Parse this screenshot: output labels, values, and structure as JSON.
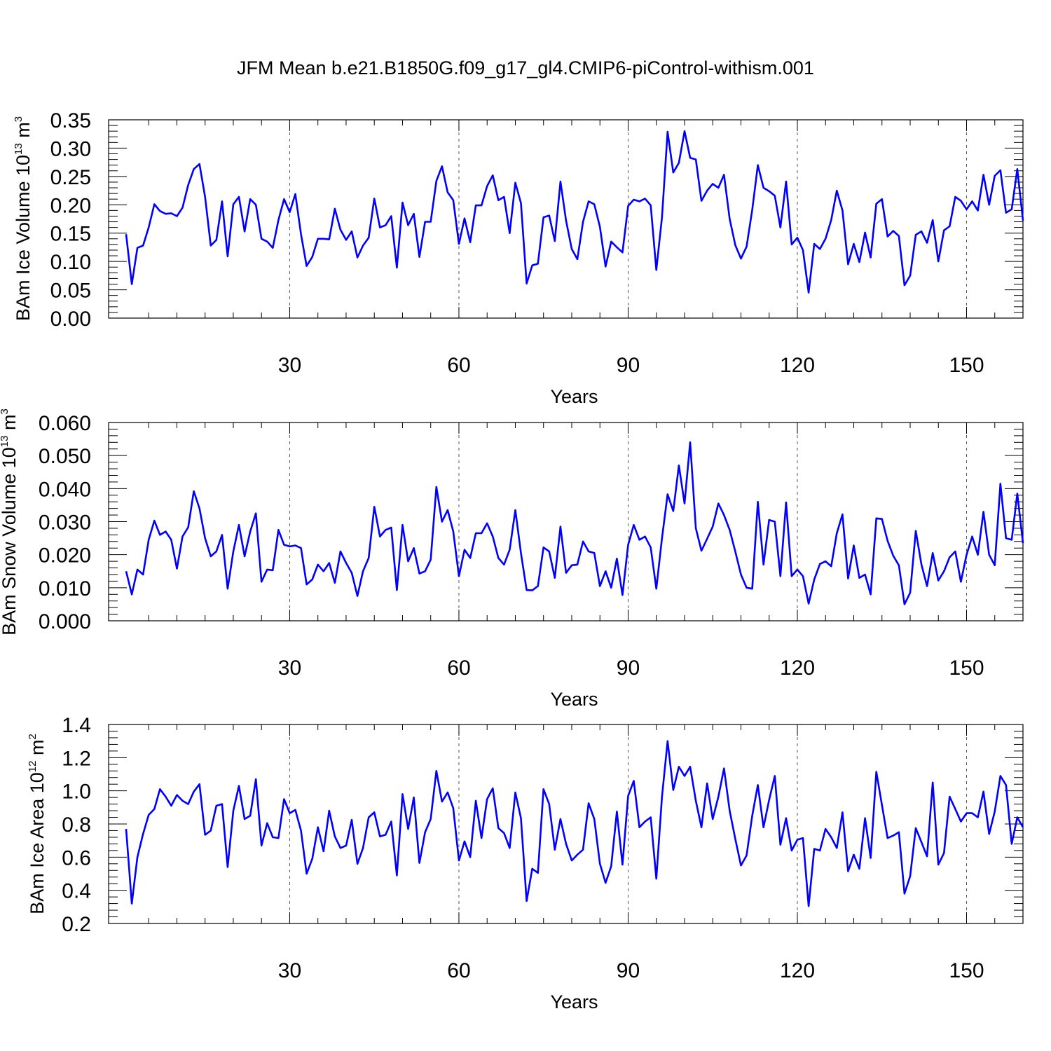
{
  "title": "JFM Mean b.e21.B1850G.f09_g17_gl4.CMIP6-piControl-withism.001",
  "colors": {
    "line": "#0000ff",
    "axis": "#000000",
    "grid": "#555555"
  },
  "chart_data": [
    {
      "type": "line",
      "xlabel": "Years",
      "ylabel": {
        "text": "BAm Ice Volume 10",
        "exp": "13",
        "unit": " m",
        "unit_exp": "3"
      },
      "xlim": [
        1,
        160
      ],
      "ylim": [
        0,
        0.35
      ],
      "yticks": [
        "0.00",
        "0.05",
        "0.10",
        "0.15",
        "0.20",
        "0.25",
        "0.30",
        "0.35"
      ],
      "xticks": [
        "30",
        "60",
        "90",
        "120",
        "150"
      ],
      "grid": "vertical-dashed",
      "series": [
        {
          "x_start": 1,
          "values": [
            0.148,
            0.06,
            0.124,
            0.128,
            0.16,
            0.201,
            0.189,
            0.184,
            0.185,
            0.18,
            0.195,
            0.235,
            0.263,
            0.272,
            0.214,
            0.128,
            0.138,
            0.206,
            0.109,
            0.201,
            0.214,
            0.153,
            0.21,
            0.2,
            0.14,
            0.135,
            0.124,
            0.173,
            0.21,
            0.187,
            0.219,
            0.148,
            0.092,
            0.108,
            0.14,
            0.14,
            0.139,
            0.193,
            0.156,
            0.138,
            0.153,
            0.107,
            0.128,
            0.142,
            0.211,
            0.16,
            0.164,
            0.18,
            0.089,
            0.204,
            0.164,
            0.184,
            0.108,
            0.17,
            0.17,
            0.242,
            0.268,
            0.222,
            0.208,
            0.131,
            0.176,
            0.134,
            0.199,
            0.199,
            0.233,
            0.252,
            0.208,
            0.214,
            0.15,
            0.239,
            0.203,
            0.061,
            0.093,
            0.096,
            0.178,
            0.181,
            0.136,
            0.241,
            0.172,
            0.122,
            0.104,
            0.17,
            0.206,
            0.201,
            0.161,
            0.091,
            0.135,
            0.125,
            0.116,
            0.198,
            0.209,
            0.206,
            0.211,
            0.199,
            0.085,
            0.178,
            0.329,
            0.257,
            0.274,
            0.33,
            0.283,
            0.28,
            0.207,
            0.225,
            0.237,
            0.23,
            0.253,
            0.175,
            0.129,
            0.105,
            0.126,
            0.191,
            0.27,
            0.23,
            0.224,
            0.216,
            0.16,
            0.241,
            0.13,
            0.142,
            0.12,
            0.045,
            0.131,
            0.122,
            0.14,
            0.173,
            0.225,
            0.19,
            0.095,
            0.131,
            0.099,
            0.151,
            0.107,
            0.202,
            0.21,
            0.144,
            0.154,
            0.145,
            0.058,
            0.075,
            0.147,
            0.153,
            0.133,
            0.173,
            0.1,
            0.155,
            0.162,
            0.214,
            0.207,
            0.192,
            0.206,
            0.19,
            0.253,
            0.2,
            0.251,
            0.261,
            0.186,
            0.192,
            0.263,
            0.172
          ]
        }
      ]
    },
    {
      "type": "line",
      "xlabel": "Years",
      "ylabel": {
        "text": "BAm Snow Volume 10",
        "exp": "13",
        "unit": " m",
        "unit_exp": "3"
      },
      "xlim": [
        1,
        160
      ],
      "ylim": [
        0,
        0.06
      ],
      "yticks": [
        "0.000",
        "0.010",
        "0.020",
        "0.030",
        "0.040",
        "0.050",
        "0.060"
      ],
      "xticks": [
        "30",
        "60",
        "90",
        "120",
        "150"
      ],
      "grid": "vertical-dashed",
      "series": [
        {
          "x_start": 1,
          "values": [
            0.015,
            0.008,
            0.0155,
            0.014,
            0.0245,
            0.0303,
            0.026,
            0.027,
            0.0245,
            0.0158,
            0.0255,
            0.0283,
            0.0392,
            0.034,
            0.025,
            0.0195,
            0.021,
            0.026,
            0.0097,
            0.021,
            0.029,
            0.0195,
            0.027,
            0.0325,
            0.0118,
            0.0155,
            0.0153,
            0.0275,
            0.023,
            0.0225,
            0.0228,
            0.022,
            0.011,
            0.0125,
            0.017,
            0.015,
            0.0175,
            0.0115,
            0.021,
            0.0175,
            0.0145,
            0.0075,
            0.015,
            0.019,
            0.0345,
            0.0255,
            0.0275,
            0.0282,
            0.0093,
            0.029,
            0.018,
            0.022,
            0.0143,
            0.015,
            0.0185,
            0.0405,
            0.03,
            0.0335,
            0.027,
            0.0135,
            0.0215,
            0.019,
            0.0265,
            0.0265,
            0.0295,
            0.0255,
            0.019,
            0.017,
            0.0215,
            0.0335,
            0.0205,
            0.0093,
            0.0092,
            0.0105,
            0.0222,
            0.021,
            0.013,
            0.0285,
            0.0145,
            0.0168,
            0.017,
            0.024,
            0.021,
            0.0205,
            0.0105,
            0.015,
            0.01,
            0.0188,
            0.0078,
            0.023,
            0.029,
            0.0245,
            0.0255,
            0.0222,
            0.0097,
            0.025,
            0.0383,
            0.0332,
            0.047,
            0.0355,
            0.054,
            0.028,
            0.0212,
            0.0248,
            0.0285,
            0.0355,
            0.032,
            0.0275,
            0.021,
            0.014,
            0.01,
            0.0097,
            0.036,
            0.017,
            0.0305,
            0.03,
            0.0135,
            0.0358,
            0.0135,
            0.0155,
            0.0135,
            0.0052,
            0.0125,
            0.0172,
            0.018,
            0.0165,
            0.0265,
            0.0322,
            0.0128,
            0.0228,
            0.013,
            0.014,
            0.008,
            0.031,
            0.0308,
            0.0242,
            0.0197,
            0.0168,
            0.005,
            0.0085,
            0.0272,
            0.017,
            0.0105,
            0.0205,
            0.0122,
            0.015,
            0.0192,
            0.021,
            0.0118,
            0.02,
            0.0255,
            0.02,
            0.033,
            0.02,
            0.0168,
            0.0415,
            0.025,
            0.0245,
            0.0385,
            0.0235
          ]
        }
      ]
    },
    {
      "type": "line",
      "xlabel": "Years",
      "ylabel": {
        "text": "BAm Ice Area 10",
        "exp": "12",
        "unit": " m",
        "unit_exp": "2"
      },
      "xlim": [
        1,
        160
      ],
      "ylim": [
        0.2,
        1.4
      ],
      "yticks": [
        "0.2",
        "0.4",
        "0.6",
        "0.8",
        "1.0",
        "1.2",
        "1.4"
      ],
      "xticks": [
        "30",
        "60",
        "90",
        "120",
        "150"
      ],
      "grid": "vertical-dashed",
      "series": [
        {
          "x_start": 1,
          "values": [
            0.77,
            0.32,
            0.6,
            0.74,
            0.855,
            0.89,
            1.01,
            0.965,
            0.91,
            0.975,
            0.94,
            0.92,
            0.995,
            1.04,
            0.735,
            0.76,
            0.91,
            0.92,
            0.54,
            0.88,
            1.03,
            0.83,
            0.85,
            1.07,
            0.67,
            0.805,
            0.72,
            0.715,
            0.95,
            0.865,
            0.885,
            0.76,
            0.5,
            0.59,
            0.78,
            0.635,
            0.88,
            0.725,
            0.655,
            0.67,
            0.825,
            0.56,
            0.655,
            0.84,
            0.87,
            0.725,
            0.735,
            0.815,
            0.49,
            0.98,
            0.77,
            0.96,
            0.565,
            0.75,
            0.83,
            1.12,
            0.935,
            0.99,
            0.895,
            0.58,
            0.695,
            0.6,
            0.94,
            0.715,
            0.95,
            1.015,
            0.775,
            0.745,
            0.655,
            0.99,
            0.835,
            0.335,
            0.53,
            0.505,
            1.01,
            0.92,
            0.645,
            0.83,
            0.68,
            0.58,
            0.615,
            0.645,
            0.925,
            0.83,
            0.56,
            0.445,
            0.545,
            0.875,
            0.555,
            0.97,
            1.06,
            0.78,
            0.815,
            0.84,
            0.47,
            0.965,
            1.3,
            1.005,
            1.145,
            1.09,
            1.145,
            0.94,
            0.78,
            1.045,
            0.83,
            0.965,
            1.135,
            0.88,
            0.71,
            0.55,
            0.61,
            0.85,
            1.035,
            0.78,
            0.945,
            1.09,
            0.675,
            0.835,
            0.64,
            0.705,
            0.715,
            0.305,
            0.65,
            0.64,
            0.77,
            0.72,
            0.655,
            0.87,
            0.515,
            0.615,
            0.53,
            0.835,
            0.595,
            1.115,
            0.915,
            0.715,
            0.73,
            0.75,
            0.38,
            0.485,
            0.775,
            0.69,
            0.605,
            1.05,
            0.555,
            0.625,
            0.965,
            0.89,
            0.815,
            0.865,
            0.865,
            0.84,
            0.995,
            0.74,
            0.875,
            1.09,
            1.035,
            0.68,
            0.84,
            0.78
          ]
        }
      ]
    }
  ]
}
